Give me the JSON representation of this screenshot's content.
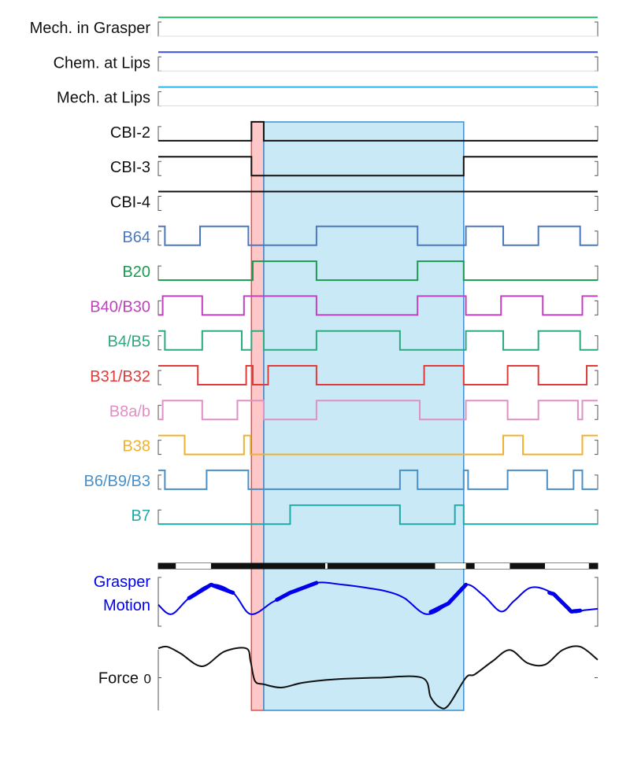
{
  "colors": {
    "black": "#111111",
    "red_highlight": "#ff9a9a",
    "blue_highlight": "#9fd7f0",
    "frame": "#888888"
  },
  "labels": {
    "force_zero": "0"
  },
  "chart_data": {
    "type": "line",
    "x_range": [
      0,
      100
    ],
    "highlight_regions": [
      {
        "color": "#ff9a9a",
        "x_start": 21.2,
        "x_end": 24.0
      },
      {
        "color": "#9fd7f0",
        "x_start": 24.0,
        "x_end": 69.5
      }
    ],
    "digital_series": [
      {
        "label": "Mech. in Grasper",
        "label_color": "#111111",
        "color": "#2ecc71",
        "steps": [
          [
            0,
            1
          ]
        ]
      },
      {
        "label": "Chem. at Lips",
        "label_color": "#111111",
        "color": "#3a4fd4",
        "steps": [
          [
            0,
            1
          ]
        ]
      },
      {
        "label": "Mech. at Lips",
        "label_color": "#111111",
        "color": "#2bb5e6",
        "steps": [
          [
            0,
            1
          ]
        ]
      },
      {
        "label": "CBI-2",
        "label_color": "#111111",
        "color": "#111111",
        "steps": [
          [
            0,
            0
          ],
          [
            21.2,
            1
          ],
          [
            24.0,
            0
          ]
        ]
      },
      {
        "label": "CBI-3",
        "label_color": "#111111",
        "color": "#111111",
        "steps": [
          [
            0,
            1
          ],
          [
            21.2,
            0
          ],
          [
            69.5,
            1
          ]
        ]
      },
      {
        "label": "CBI-4",
        "label_color": "#111111",
        "color": "#111111",
        "steps": [
          [
            0,
            1
          ]
        ]
      },
      {
        "label": "B64",
        "label_color": "#4a78c0",
        "color": "#4a78c0",
        "steps": [
          [
            0,
            1
          ],
          [
            1.5,
            0
          ],
          [
            9.5,
            1
          ],
          [
            20.5,
            0
          ],
          [
            36,
            1
          ],
          [
            59,
            0
          ],
          [
            70,
            1
          ],
          [
            78.5,
            0
          ],
          [
            86.5,
            1
          ],
          [
            96,
            0
          ]
        ]
      },
      {
        "label": "B20",
        "label_color": "#1a9a52",
        "color": "#1a9a52",
        "steps": [
          [
            0,
            0
          ],
          [
            21.5,
            1
          ],
          [
            36,
            0
          ],
          [
            59,
            1
          ],
          [
            69.5,
            0
          ]
        ]
      },
      {
        "label": "B40/B30",
        "label_color": "#c040c0",
        "color": "#c040c0",
        "steps": [
          [
            0,
            0
          ],
          [
            1,
            1
          ],
          [
            10,
            0
          ],
          [
            19.5,
            1
          ],
          [
            36,
            0
          ],
          [
            59,
            1
          ],
          [
            70,
            0
          ],
          [
            78,
            1
          ],
          [
            87.5,
            0
          ],
          [
            96.5,
            1
          ]
        ]
      },
      {
        "label": "B4/B5",
        "label_color": "#2aaa80",
        "color": "#2aaa80",
        "steps": [
          [
            0,
            1
          ],
          [
            1.5,
            0
          ],
          [
            10,
            1
          ],
          [
            19,
            0
          ],
          [
            21.2,
            1
          ],
          [
            24,
            0
          ],
          [
            36,
            1
          ],
          [
            55,
            0
          ],
          [
            70,
            1
          ],
          [
            78.5,
            0
          ],
          [
            86.5,
            1
          ],
          [
            96,
            0
          ]
        ]
      },
      {
        "label": "B31/B32",
        "label_color": "#e03a3a",
        "color": "#e03a3a",
        "steps": [
          [
            0,
            1
          ],
          [
            9,
            0
          ],
          [
            20,
            1
          ],
          [
            21.5,
            0
          ],
          [
            25,
            1
          ],
          [
            36,
            0
          ],
          [
            60.5,
            1
          ],
          [
            69.5,
            0
          ],
          [
            79.5,
            1
          ],
          [
            86.5,
            0
          ],
          [
            97.5,
            1
          ]
        ]
      },
      {
        "label": "B8a/b",
        "label_color": "#e090c4",
        "color": "#e090c4",
        "steps": [
          [
            0,
            0
          ],
          [
            1,
            1
          ],
          [
            10,
            0
          ],
          [
            18,
            1
          ],
          [
            24,
            0
          ],
          [
            36,
            1
          ],
          [
            59.5,
            0
          ],
          [
            70,
            1
          ],
          [
            79.5,
            0
          ],
          [
            86.5,
            1
          ],
          [
            95.5,
            0
          ],
          [
            96.5,
            1
          ]
        ]
      },
      {
        "label": "B38",
        "label_color": "#f0b030",
        "color": "#f0b030",
        "steps": [
          [
            0,
            1
          ],
          [
            1,
            1
          ],
          [
            6,
            0
          ],
          [
            19.5,
            1
          ],
          [
            21,
            0
          ],
          [
            78.5,
            1
          ],
          [
            83,
            0
          ],
          [
            96.5,
            1
          ]
        ]
      },
      {
        "label": "B6/B9/B3",
        "label_color": "#4a90c8",
        "color": "#4a90c8",
        "steps": [
          [
            0,
            1
          ],
          [
            1.5,
            0
          ],
          [
            11,
            1
          ],
          [
            20.5,
            0
          ],
          [
            55,
            1
          ],
          [
            59,
            0
          ],
          [
            69.5,
            1
          ],
          [
            70.5,
            0
          ],
          [
            79.5,
            1
          ],
          [
            88.5,
            0
          ],
          [
            94.5,
            1
          ],
          [
            96.5,
            0
          ]
        ]
      },
      {
        "label": "B7",
        "label_color": "#20a8a8",
        "color": "#20a8a8",
        "steps": [
          [
            0,
            0
          ],
          [
            30,
            1
          ],
          [
            55,
            0
          ],
          [
            67.5,
            1
          ],
          [
            69.5,
            0
          ]
        ]
      }
    ],
    "phase_bar": {
      "segments": [
        {
          "x_start": 0,
          "x_end": 4,
          "color": "black"
        },
        {
          "x_start": 4,
          "x_end": 12,
          "color": "white"
        },
        {
          "x_start": 12,
          "x_end": 38,
          "color": "black"
        },
        {
          "x_start": 38,
          "x_end": 38.5,
          "color": "white"
        },
        {
          "x_start": 38.5,
          "x_end": 63,
          "color": "black"
        },
        {
          "x_start": 63,
          "x_end": 70,
          "color": "white"
        },
        {
          "x_start": 70,
          "x_end": 72,
          "color": "black"
        },
        {
          "x_start": 72,
          "x_end": 80,
          "color": "white"
        },
        {
          "x_start": 80,
          "x_end": 88,
          "color": "black"
        },
        {
          "x_start": 88,
          "x_end": 98,
          "color": "white"
        },
        {
          "x_start": 98,
          "x_end": 100,
          "color": "black"
        }
      ]
    },
    "grasper_motion": {
      "label_line1": "Grasper",
      "label_line2": "Motion",
      "label_color": "#0000ee",
      "color": "#0000ee",
      "ylim": [
        -1,
        1
      ],
      "x": [
        0,
        3,
        7,
        12,
        17,
        21,
        26,
        30,
        36,
        42,
        48,
        52,
        56,
        61,
        66,
        70,
        74,
        78,
        81,
        85,
        90,
        94,
        97,
        100
      ],
      "y": [
        -0.2,
        -0.55,
        0.05,
        0.55,
        0.25,
        -0.55,
        -0.1,
        0.25,
        0.62,
        0.55,
        0.42,
        0.3,
        0.05,
        -0.55,
        -0.15,
        0.55,
        0.15,
        -0.45,
        -0.05,
        0.45,
        0.2,
        -0.45,
        -0.4,
        -0.35
      ],
      "thick_ranges": [
        [
          7,
          17
        ],
        [
          27,
          36
        ],
        [
          62,
          70
        ],
        [
          89,
          96
        ]
      ]
    },
    "force": {
      "label": "Force",
      "zero_tick": "0",
      "color": "#111111",
      "ylim": [
        -1,
        1
      ],
      "x": [
        0,
        2,
        5,
        10,
        15,
        20,
        21,
        22,
        24,
        28,
        33,
        40,
        50,
        60,
        62,
        64,
        66,
        70,
        72,
        76,
        80,
        84,
        88,
        92,
        96,
        100
      ],
      "y": [
        0.9,
        0.95,
        0.75,
        0.35,
        0.8,
        0.9,
        0.5,
        -0.1,
        -0.2,
        -0.3,
        -0.15,
        -0.05,
        0.0,
        0.0,
        -0.6,
        -0.9,
        -0.85,
        0.0,
        0.1,
        0.5,
        0.85,
        0.45,
        0.4,
        0.85,
        0.95,
        0.55
      ]
    }
  }
}
